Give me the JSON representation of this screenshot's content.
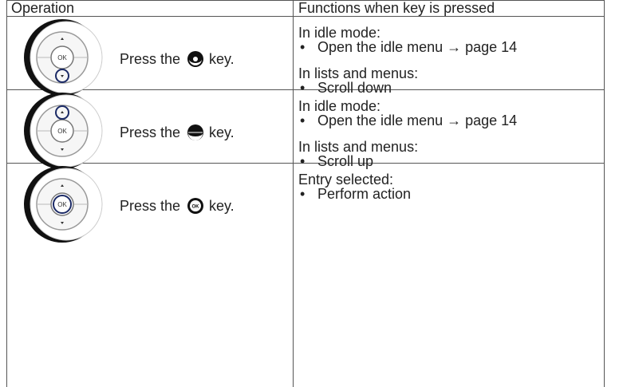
{
  "table": {
    "headers": [
      "Operation",
      "Functions when key is pressed"
    ],
    "icon_label": "OK",
    "rows": [
      {
        "operation": {
          "before": "Press the",
          "after": "key."
        },
        "functions": [
          {
            "heading": "In idle mode:",
            "items": [
              "Open the idle menu → page 14"
            ]
          },
          {
            "heading": "In lists and menus:",
            "items": [
              "Scroll down"
            ]
          }
        ]
      },
      {
        "operation": {
          "before": "Press the",
          "after": "key."
        },
        "functions": [
          {
            "heading": "In idle mode:",
            "items": [
              "Open the idle menu → page 14"
            ]
          },
          {
            "heading": "In lists and menus:",
            "items": [
              "Scroll up"
            ]
          }
        ]
      },
      {
        "operation": {
          "before": "Press the",
          "after": "key."
        },
        "functions": [
          {
            "heading": "Entry selected:",
            "items": [
              "Perform action"
            ]
          }
        ]
      }
    ]
  }
}
